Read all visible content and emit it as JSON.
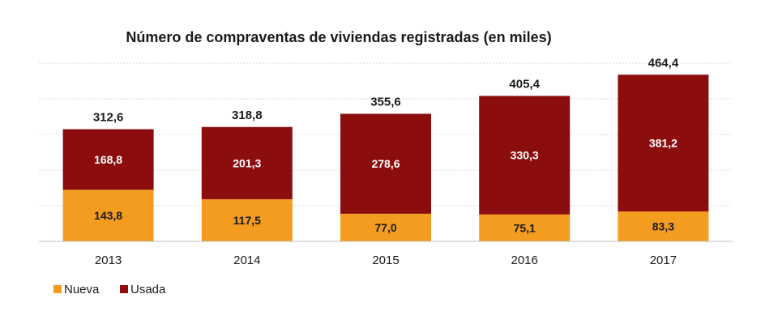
{
  "chart_data": {
    "type": "bar",
    "stacked": true,
    "title": "Número de compraventas de viviendas registradas (en miles)",
    "xlabel": "",
    "ylabel": "",
    "categories": [
      "2013",
      "2014",
      "2015",
      "2016",
      "2017"
    ],
    "series": [
      {
        "name": "Nueva",
        "color": "#f39c1f",
        "label_color": "#1a1a1a",
        "values": [
          143.8,
          117.5,
          77.0,
          75.1,
          83.3
        ],
        "labels": [
          "143,8",
          "117,5",
          "77,0",
          "75,1",
          "83,3"
        ]
      },
      {
        "name": "Usada",
        "color": "#8b0d0d",
        "label_color": "#ffffff",
        "values": [
          168.8,
          201.3,
          278.6,
          330.3,
          381.2
        ],
        "labels": [
          "168,8",
          "201,3",
          "278,6",
          "330,3",
          "381,2"
        ]
      }
    ],
    "totals": [
      312.6,
      318.8,
      355.6,
      405.4,
      464.4
    ],
    "total_labels": [
      "312,6",
      "318,8",
      "355,6",
      "405,4",
      "464,4"
    ],
    "ylim": [
      0,
      500
    ],
    "grid": true,
    "legend_position": "bottom-left"
  }
}
